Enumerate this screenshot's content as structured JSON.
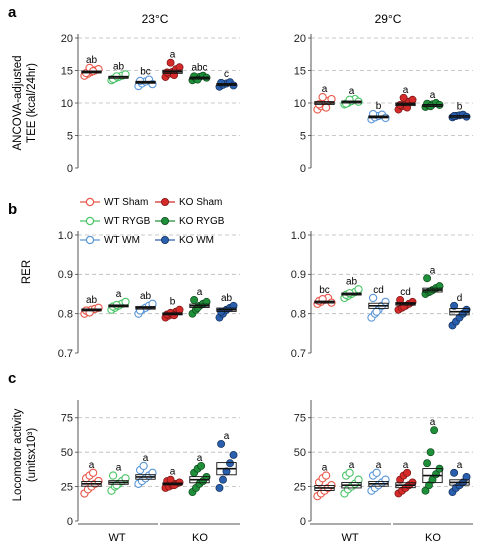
{
  "figure": {
    "panel_letters": [
      "a",
      "b",
      "c"
    ],
    "temperature_titles": [
      "23°C",
      "29°C"
    ],
    "group_labels": [
      "WT",
      "KO"
    ],
    "ylabels": {
      "TEE": [
        "ANCOVA-adjusted",
        "TEE (kcal/24hr)"
      ],
      "RER": [
        "RER"
      ],
      "LOCO": [
        "Locomotor activity",
        "(unitsx10³)"
      ]
    }
  },
  "legend": {
    "placement": "top-left of panel b (left column)",
    "entries": [
      {
        "label": "WT Sham",
        "color": "#e8574a",
        "filled": false
      },
      {
        "label": "KO Sham",
        "color": "#d42a2a",
        "filled": true
      },
      {
        "label": "WT RYGB",
        "color": "#49c466",
        "filled": false
      },
      {
        "label": "KO RYGB",
        "color": "#1f8f3a",
        "filled": true
      },
      {
        "label": "WT WM",
        "color": "#5a96d8",
        "filled": false
      },
      {
        "label": "KO WM",
        "color": "#2a5fae",
        "filled": true
      }
    ]
  },
  "chart_data": [
    {
      "type": "scatter",
      "panel": "a",
      "temperature": "23°C",
      "ylabel": "ANCOVA-adjusted TEE (kcal/24hr)",
      "ylim": [
        0,
        20
      ],
      "yticks": [
        0,
        5,
        10,
        15,
        20
      ],
      "grid": "dashed horizontal",
      "categories": [
        "WT Sham",
        "WT RYGB",
        "WT WM",
        "KO Sham",
        "KO RYGB",
        "KO WM"
      ],
      "means": [
        14.8,
        14.0,
        13.2,
        14.8,
        13.9,
        12.9
      ],
      "letters": [
        "ab",
        "ab",
        "bc",
        "a",
        "abc",
        "c"
      ],
      "values": [
        [
          14.2,
          14.5,
          14.8,
          15.0,
          15.2,
          14.6,
          15.4,
          14.9
        ],
        [
          13.5,
          13.8,
          14.0,
          14.2,
          14.4,
          13.7,
          14.1
        ],
        [
          12.6,
          13.0,
          13.3,
          13.6,
          12.9,
          13.4
        ],
        [
          14.0,
          14.5,
          14.8,
          15.2,
          15.5,
          14.7,
          16.2,
          14.3
        ],
        [
          13.5,
          13.8,
          14.0,
          14.2,
          13.9,
          14.1,
          13.6
        ],
        [
          12.5,
          12.8,
          13.0,
          13.2,
          12.7,
          13.1
        ]
      ]
    },
    {
      "type": "scatter",
      "panel": "a",
      "temperature": "29°C",
      "ylabel": "",
      "ylim": [
        0,
        20
      ],
      "yticks": [
        0,
        5,
        10,
        15,
        20
      ],
      "grid": "dashed horizontal",
      "categories": [
        "WT Sham",
        "WT RYGB",
        "WT WM",
        "KO Sham",
        "KO RYGB",
        "KO WM"
      ],
      "means": [
        10.0,
        10.2,
        7.9,
        9.8,
        9.7,
        8.0
      ],
      "letters": [
        "a",
        "a",
        "b",
        "a",
        "a",
        "b"
      ],
      "values": [
        [
          9.0,
          9.5,
          10.0,
          10.3,
          10.6,
          9.8,
          10.9,
          9.3
        ],
        [
          9.8,
          10.0,
          10.3,
          10.6,
          10.2,
          9.9,
          10.5
        ],
        [
          7.5,
          7.8,
          8.0,
          8.2,
          7.7,
          8.3
        ],
        [
          9.0,
          9.5,
          9.8,
          10.2,
          10.5,
          9.7,
          10.8,
          9.3
        ],
        [
          9.4,
          9.6,
          9.8,
          10.0,
          9.7,
          9.9,
          9.5
        ],
        [
          7.8,
          8.0,
          8.1,
          8.2,
          7.9,
          8.0
        ]
      ]
    },
    {
      "type": "scatter",
      "panel": "b",
      "temperature": "23°C",
      "ylabel": "RER",
      "ylim": [
        0.7,
        1.0
      ],
      "yticks": [
        0.7,
        0.8,
        0.9,
        1.0
      ],
      "grid": "dashed horizontal",
      "categories": [
        "WT Sham",
        "WT RYGB",
        "WT WM",
        "KO Sham",
        "KO RYGB",
        "KO WM"
      ],
      "means": [
        0.81,
        0.82,
        0.815,
        0.8,
        0.82,
        0.81
      ],
      "letters": [
        "ab",
        "a",
        "ab",
        "b",
        "a",
        "ab"
      ],
      "values": [
        [
          0.8,
          0.805,
          0.81,
          0.812,
          0.815,
          0.808,
          0.803
        ],
        [
          0.81,
          0.815,
          0.82,
          0.825,
          0.83,
          0.818,
          0.822
        ],
        [
          0.8,
          0.81,
          0.815,
          0.82,
          0.825,
          0.808
        ],
        [
          0.79,
          0.795,
          0.8,
          0.805,
          0.81,
          0.798,
          0.802,
          0.796
        ],
        [
          0.8,
          0.81,
          0.82,
          0.825,
          0.83,
          0.835,
          0.815
        ],
        [
          0.79,
          0.8,
          0.81,
          0.815,
          0.82,
          0.805
        ]
      ]
    },
    {
      "type": "scatter",
      "panel": "b",
      "temperature": "29°C",
      "ylabel": "",
      "ylim": [
        0.7,
        1.0
      ],
      "yticks": [
        0.7,
        0.8,
        0.9,
        1.0
      ],
      "grid": "dashed horizontal",
      "categories": [
        "WT Sham",
        "WT RYGB",
        "WT WM",
        "KO Sham",
        "KO RYGB",
        "KO WM"
      ],
      "means": [
        0.83,
        0.85,
        0.82,
        0.825,
        0.86,
        0.805
      ],
      "letters": [
        "bc",
        "ab",
        "cd",
        "cd",
        "a",
        "d"
      ],
      "values": [
        [
          0.825,
          0.83,
          0.835,
          0.84,
          0.828,
          0.832,
          0.837
        ],
        [
          0.84,
          0.845,
          0.85,
          0.855,
          0.862,
          0.848,
          0.852
        ],
        [
          0.79,
          0.8,
          0.81,
          0.82,
          0.83,
          0.84,
          0.805
        ],
        [
          0.81,
          0.815,
          0.82,
          0.825,
          0.83,
          0.835,
          0.818
        ],
        [
          0.85,
          0.855,
          0.86,
          0.865,
          0.87,
          0.89,
          0.857
        ],
        [
          0.77,
          0.78,
          0.79,
          0.8,
          0.81,
          0.82
        ]
      ]
    },
    {
      "type": "scatter",
      "panel": "c",
      "temperature": "23°C",
      "ylabel": "Locomotor activity (unitsx10³)",
      "ylim": [
        0,
        85
      ],
      "yticks": [
        0,
        25,
        50,
        75
      ],
      "grid": "dashed horizontal",
      "categories": [
        "WT Sham",
        "WT RYGB",
        "WT WM",
        "KO Sham",
        "KO RYGB",
        "KO WM"
      ],
      "means": [
        27,
        28,
        32,
        27,
        30,
        38
      ],
      "letters": [
        "a",
        "a",
        "a",
        "a",
        "a",
        "a"
      ],
      "values": [
        [
          20,
          23,
          25,
          27,
          29,
          31,
          33,
          35
        ],
        [
          22,
          25,
          27,
          29,
          31,
          33,
          26
        ],
        [
          27,
          29,
          31,
          33,
          35,
          37,
          40
        ],
        [
          24,
          25,
          26,
          27,
          28,
          29,
          30,
          26
        ],
        [
          21,
          24,
          27,
          29,
          32,
          35,
          38,
          40
        ],
        [
          24,
          30,
          36,
          42,
          48,
          56
        ]
      ]
    },
    {
      "type": "scatter",
      "panel": "c",
      "temperature": "29°C",
      "ylabel": "",
      "ylim": [
        0,
        85
      ],
      "yticks": [
        0,
        25,
        50,
        75
      ],
      "grid": "dashed horizontal",
      "categories": [
        "WT Sham",
        "WT RYGB",
        "WT WM",
        "KO Sham",
        "KO RYGB",
        "KO WM"
      ],
      "means": [
        24,
        26,
        27,
        26,
        33,
        28
      ],
      "letters": [
        "a",
        "a",
        "a",
        "a",
        "a",
        "a"
      ],
      "values": [
        [
          18,
          20,
          22,
          24,
          26,
          28,
          31,
          33
        ],
        [
          20,
          23,
          25,
          27,
          30,
          33,
          35
        ],
        [
          22,
          24,
          26,
          28,
          30,
          33,
          35
        ],
        [
          20,
          22,
          24,
          26,
          28,
          30,
          33,
          35
        ],
        [
          22,
          26,
          30,
          34,
          38,
          42,
          50,
          66
        ],
        [
          21,
          24,
          26,
          28,
          32,
          35
        ]
      ]
    }
  ]
}
